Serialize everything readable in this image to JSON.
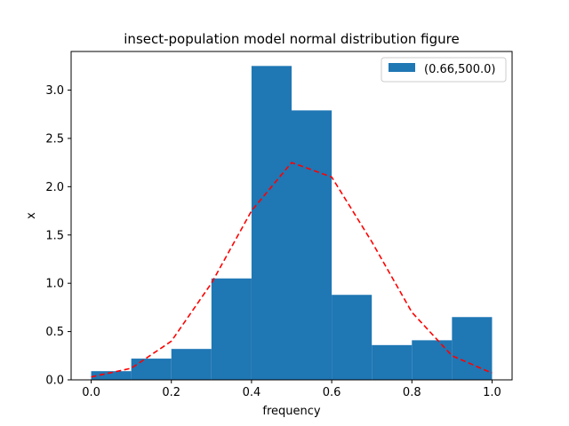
{
  "chart_data": {
    "type": "bar",
    "title": "insect-population model normal distribution figure",
    "xlabel": "frequency",
    "ylabel": "x",
    "xlim": [
      -0.05,
      1.05
    ],
    "ylim": [
      0,
      3.4
    ],
    "xticks": [
      0.0,
      0.2,
      0.4,
      0.6,
      0.8,
      1.0
    ],
    "xtick_labels": [
      "0.0",
      "0.2",
      "0.4",
      "0.6",
      "0.8",
      "1.0"
    ],
    "yticks": [
      0.0,
      0.5,
      1.0,
      1.5,
      2.0,
      2.5,
      3.0
    ],
    "ytick_labels": [
      "0.0",
      "0.5",
      "1.0",
      "1.5",
      "2.0",
      "2.5",
      "3.0"
    ],
    "grid": false,
    "legend_position": "top-right",
    "histogram": {
      "name": "(0.66,500.0)",
      "color": "#1f77b4",
      "bin_edges": [
        0.0,
        0.1,
        0.2,
        0.3,
        0.4,
        0.5,
        0.6,
        0.7,
        0.8,
        0.9,
        1.0
      ],
      "values": [
        0.09,
        0.22,
        0.32,
        1.05,
        3.25,
        2.79,
        0.88,
        0.36,
        0.41,
        0.65
      ]
    },
    "line": {
      "color": "#ff0000",
      "style": "dashed",
      "x": [
        0.0,
        0.1,
        0.2,
        0.3,
        0.4,
        0.5,
        0.6,
        0.7,
        0.8,
        0.9,
        1.0
      ],
      "y": [
        0.03,
        0.12,
        0.4,
        1.0,
        1.75,
        2.25,
        2.1,
        1.43,
        0.7,
        0.25,
        0.07
      ]
    }
  }
}
